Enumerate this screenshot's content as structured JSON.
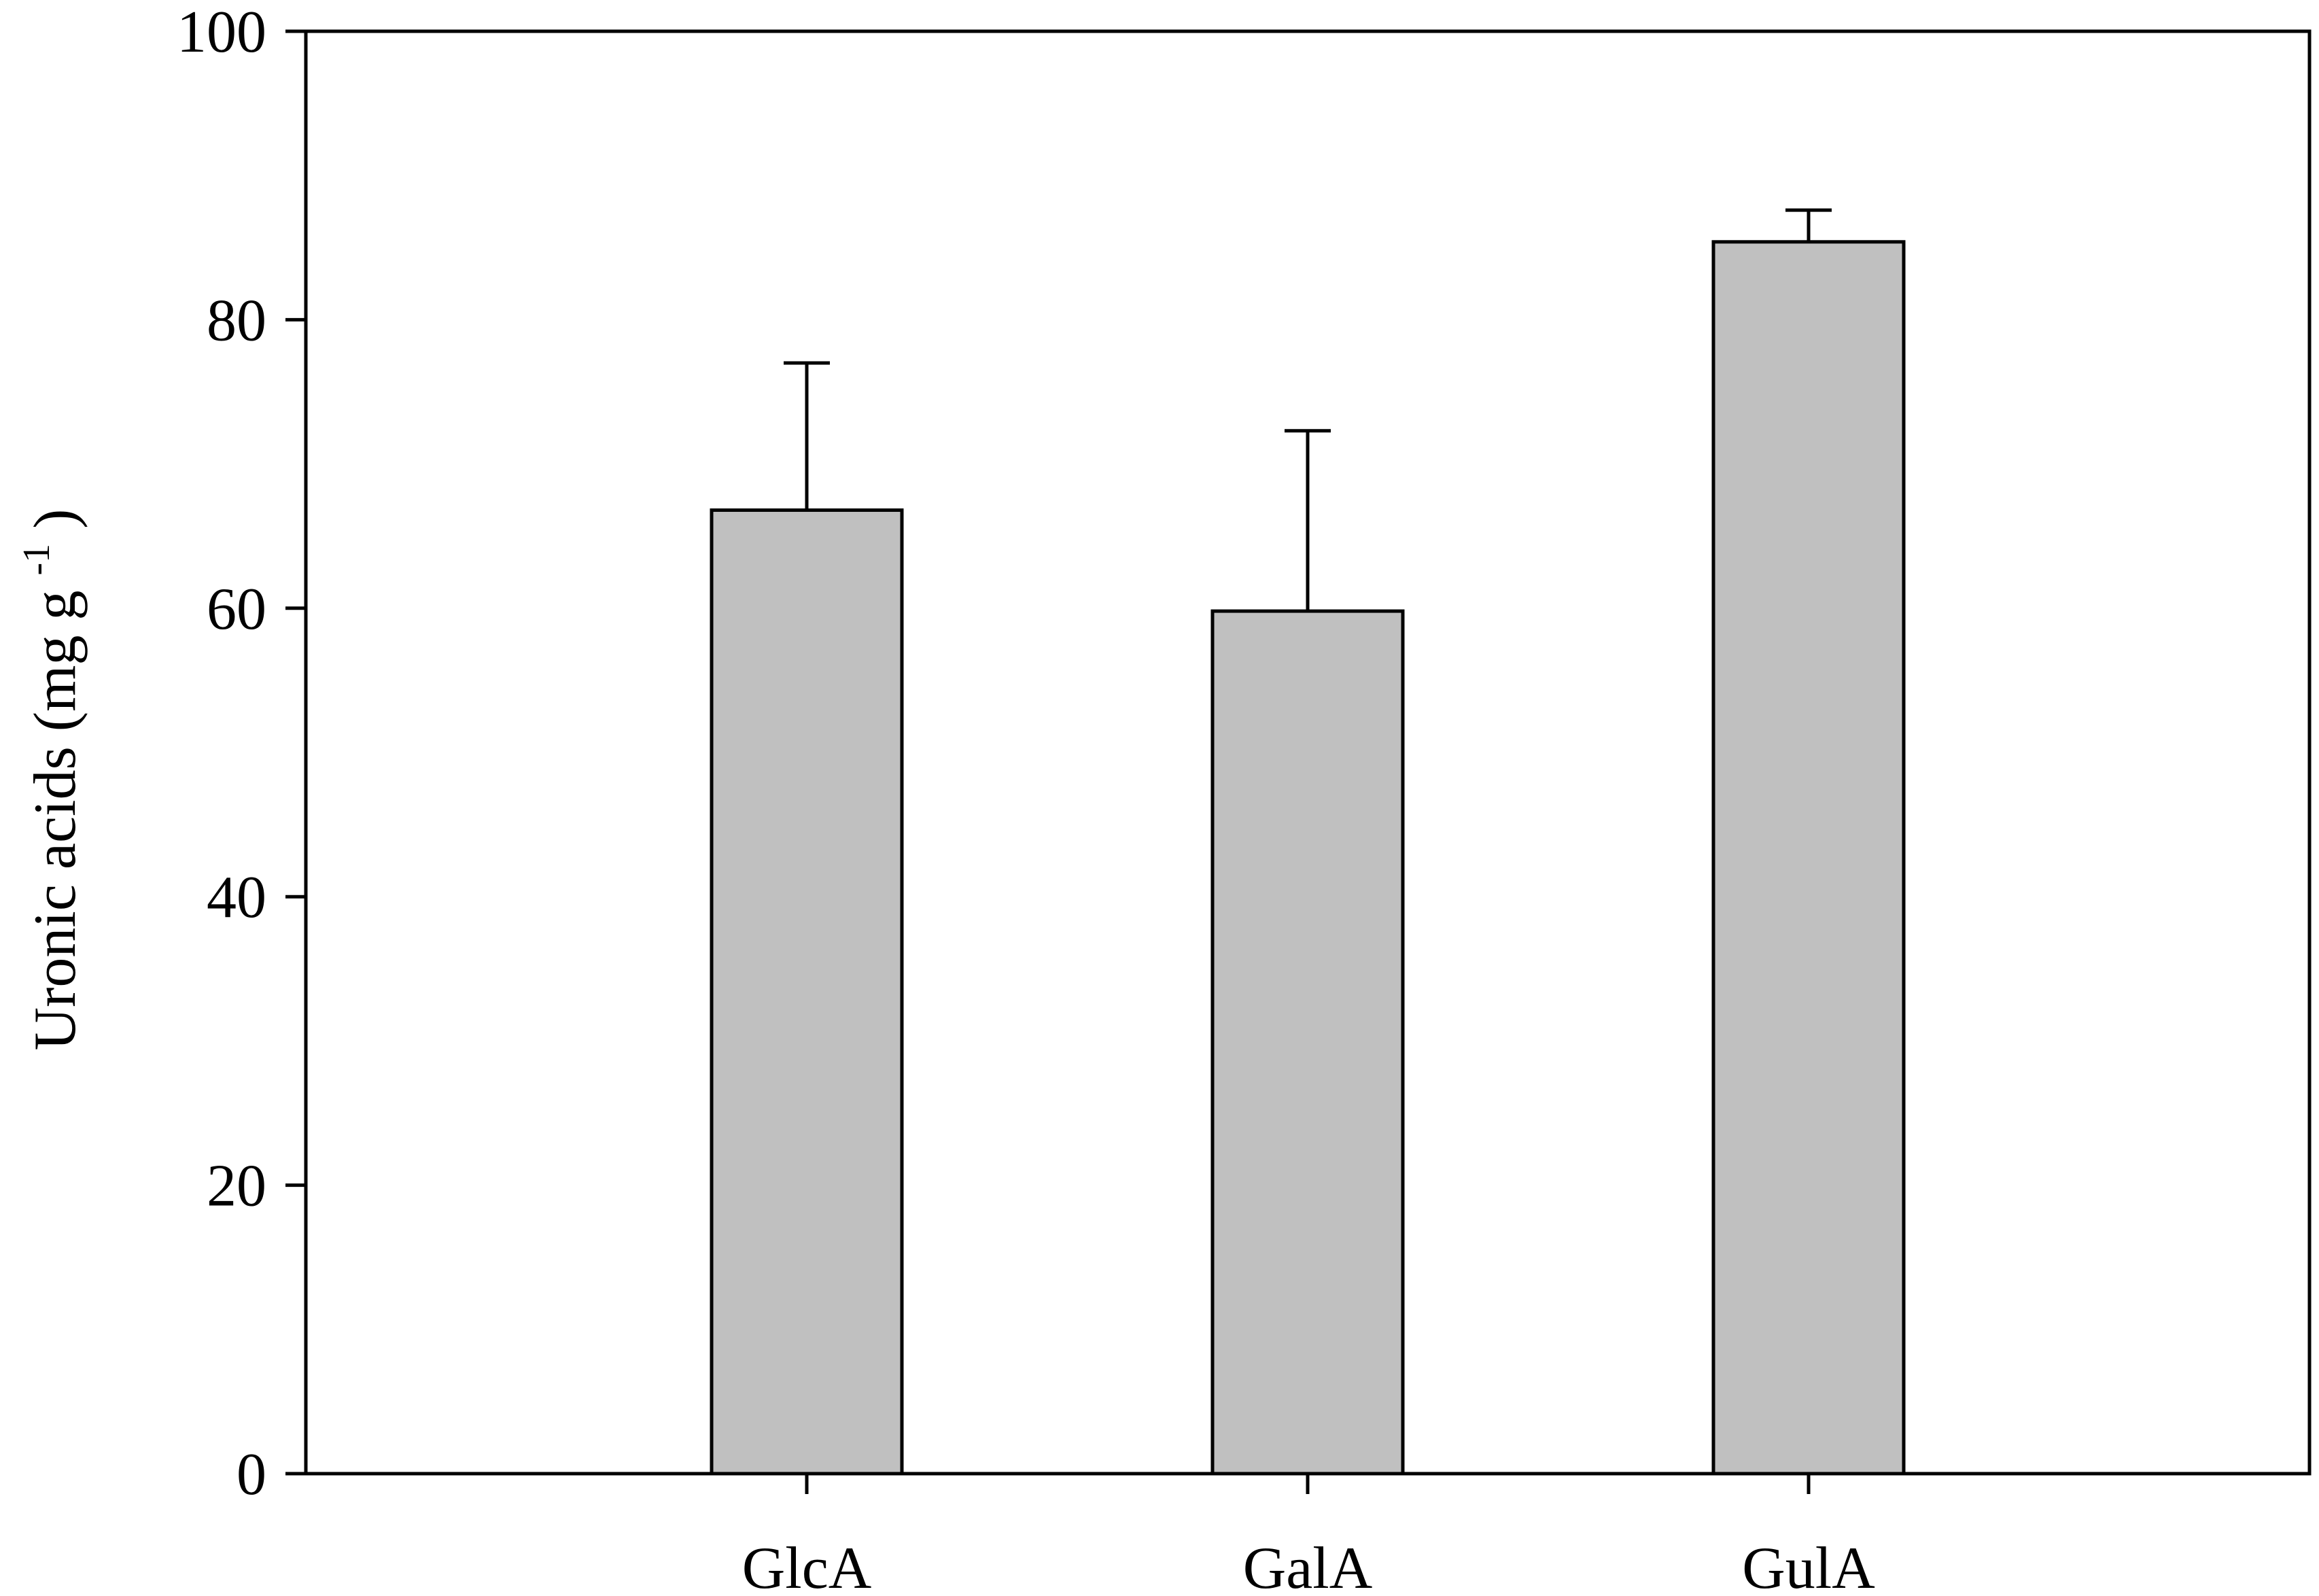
{
  "chart_data": {
    "type": "bar",
    "title": "",
    "xlabel": "",
    "ylabel": "Uronic acids (mg g",
    "ylabel_superscript": "-1",
    "ylabel_close": ")",
    "categories": [
      "GlcA",
      "GalA",
      "GulA"
    ],
    "values": [
      66.8,
      59.8,
      85.4
    ],
    "error_bars": [
      10.2,
      12.5,
      2.2
    ],
    "ylim": [
      0,
      100
    ],
    "yticks": [
      0,
      20,
      40,
      60,
      80,
      100
    ],
    "ytick_labels": [
      "0",
      "20",
      "40",
      "60",
      "80",
      "100"
    ],
    "grid": false,
    "legend": "none",
    "bar_color": "#c0c0c0",
    "edge_color": "#000000"
  }
}
